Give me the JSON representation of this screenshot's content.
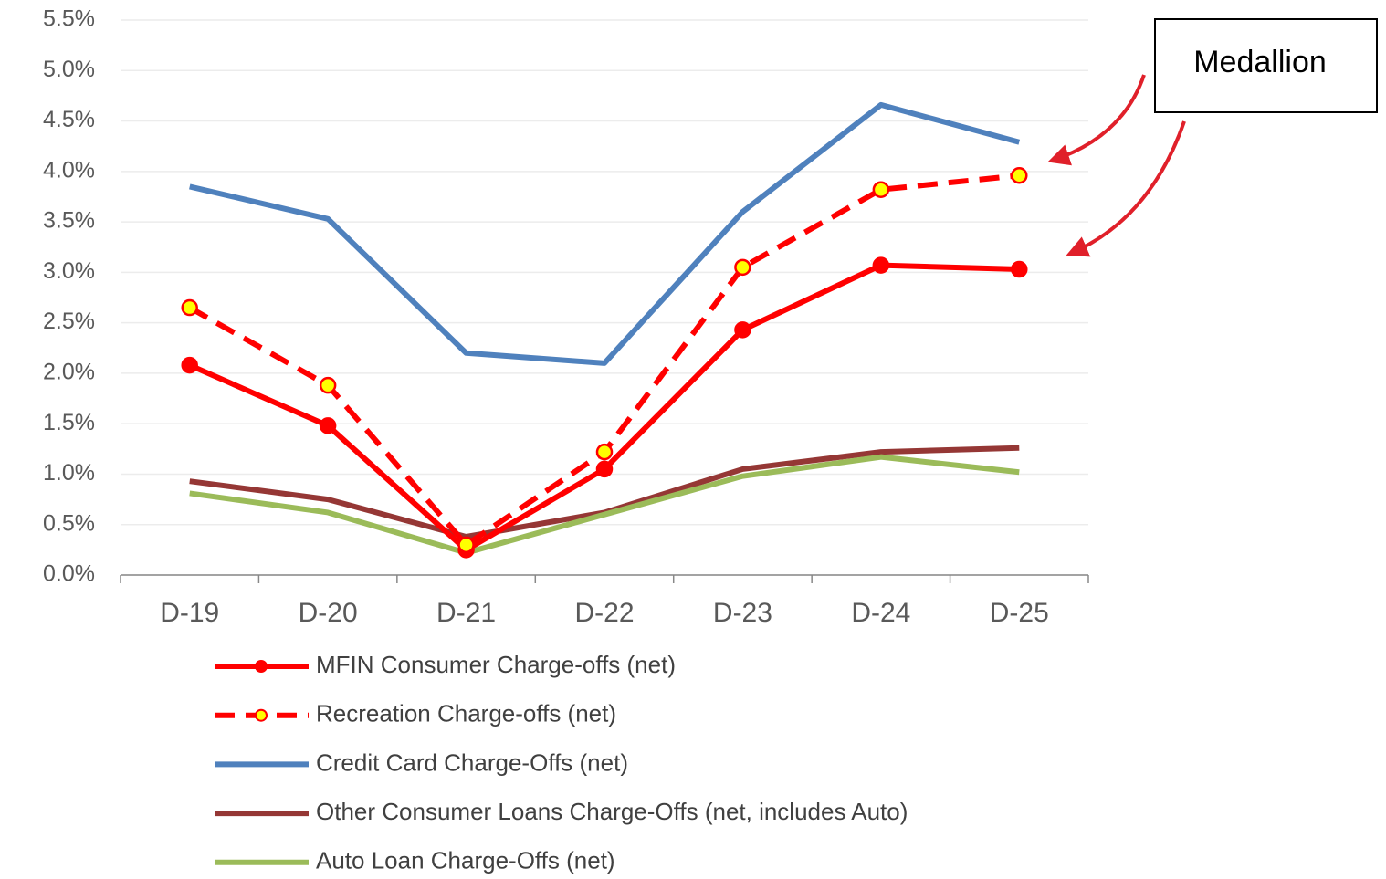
{
  "chart_data": {
    "type": "line",
    "categories": [
      "D-19",
      "D-20",
      "D-21",
      "D-22",
      "D-23",
      "D-24",
      "D-25"
    ],
    "series": [
      {
        "name": "MFIN Consumer Charge-offs (net)",
        "color": "#ff0000",
        "dash": false,
        "marker": "circle",
        "marker_color": "#ff0000",
        "values": [
          2.08,
          1.48,
          0.25,
          1.05,
          2.43,
          3.07,
          3.03
        ]
      },
      {
        "name": "Recreation Charge-offs (net)",
        "color": "#ff0000",
        "dash": true,
        "marker": "circle",
        "marker_color": "#ffff00",
        "values": [
          2.65,
          1.88,
          0.3,
          1.22,
          3.05,
          3.82,
          3.96
        ]
      },
      {
        "name": "Credit Card Charge-Offs (net)",
        "color": "#4f81bd",
        "dash": false,
        "marker": "none",
        "values": [
          3.85,
          3.53,
          2.2,
          2.1,
          3.6,
          4.66,
          4.29
        ]
      },
      {
        "name": "Other Consumer Loans Charge-Offs (net, includes Auto)",
        "color": "#953735",
        "dash": false,
        "marker": "none",
        "values": [
          0.93,
          0.75,
          0.38,
          0.62,
          1.05,
          1.22,
          1.26
        ]
      },
      {
        "name": "Auto Loan Charge-Offs (net)",
        "color": "#9bbb59",
        "dash": false,
        "marker": "none",
        "values": [
          0.81,
          0.62,
          0.22,
          0.6,
          0.98,
          1.17,
          1.02
        ]
      }
    ],
    "ylim": [
      0,
      5.5
    ],
    "yticks": [
      {
        "value": 0,
        "label": "0.0%"
      },
      {
        "value": 0.5,
        "label": "0.5%"
      },
      {
        "value": 1,
        "label": "1.0%"
      },
      {
        "value": 1.5,
        "label": "1.5%"
      },
      {
        "value": 2,
        "label": "2.0%"
      },
      {
        "value": 2.5,
        "label": "2.5%"
      },
      {
        "value": 3,
        "label": "3.0%"
      },
      {
        "value": 3.5,
        "label": "3.5%"
      },
      {
        "value": 4,
        "label": "4.0%"
      },
      {
        "value": 4.5,
        "label": "4.5%"
      },
      {
        "value": 5,
        "label": "5.0%"
      },
      {
        "value": 5.5,
        "label": "5.5%"
      }
    ],
    "grid": true,
    "legend": "bottom",
    "annotations": [
      "Medallion"
    ]
  }
}
